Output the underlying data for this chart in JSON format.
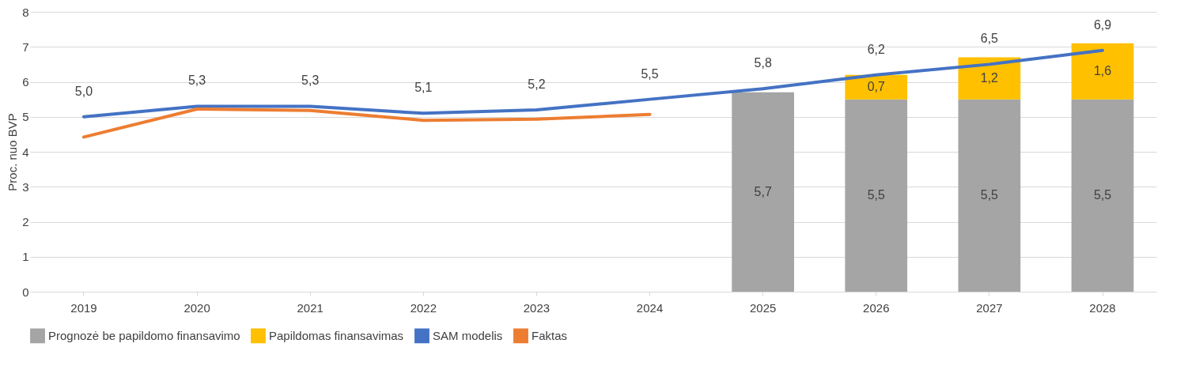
{
  "chart_data": {
    "type": "bar",
    "stacked": true,
    "ylabel": "Proc. nuo BVP",
    "categories": [
      "2019",
      "2020",
      "2021",
      "2022",
      "2023",
      "2024",
      "2025",
      "2026",
      "2027",
      "2028"
    ],
    "series": [
      {
        "name": "Prognozė be papildomo finansavimo",
        "type": "bar",
        "color": "#a5a5a5",
        "values": [
          null,
          null,
          null,
          null,
          null,
          null,
          5.7,
          5.5,
          5.5,
          5.5
        ],
        "value_labels": [
          null,
          null,
          null,
          null,
          null,
          null,
          "5,7",
          "5,5",
          "5,5",
          "5,5"
        ]
      },
      {
        "name": "Papildomas finansavimas",
        "type": "bar",
        "color": "#ffc000",
        "values": [
          null,
          null,
          null,
          null,
          null,
          null,
          null,
          0.7,
          1.2,
          1.6
        ],
        "value_labels": [
          null,
          null,
          null,
          null,
          null,
          null,
          null,
          "0,7",
          "1,2",
          "1,6"
        ]
      },
      {
        "name": "SAM modelis",
        "type": "line",
        "color": "#4472c4",
        "values": [
          5.0,
          5.3,
          5.3,
          5.1,
          5.2,
          5.5,
          5.8,
          6.2,
          6.5,
          6.9
        ],
        "value_labels": [
          "5,0",
          "5,3",
          "5,3",
          "5,1",
          "5,2",
          "5,5",
          "5,8",
          "6,2",
          "6,5",
          "6,9"
        ]
      },
      {
        "name": "Faktas",
        "type": "line",
        "color": "#ed7d31",
        "values": [
          4.42,
          5.22,
          5.18,
          4.9,
          4.93,
          5.07,
          null,
          null,
          null,
          null
        ]
      }
    ],
    "ylim": [
      0,
      8
    ],
    "yticks": [
      0,
      1,
      2,
      3,
      4,
      5,
      6,
      7,
      8
    ],
    "grid": "y",
    "legend": "bottom"
  }
}
